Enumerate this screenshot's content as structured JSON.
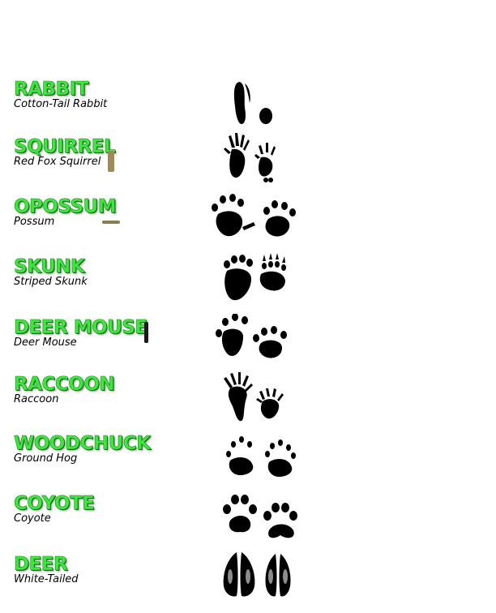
{
  "animals": [
    {
      "name": "RABBIT",
      "subtitle": "Cotton-Tail Rabbit",
      "track_icon": "rabbit-tracks-icon"
    },
    {
      "name": "SQUIRREL",
      "subtitle": "Red Fox Squirrel",
      "track_icon": "squirrel-tracks-icon"
    },
    {
      "name": "OPOSSUM",
      "subtitle": "Possum",
      "track_icon": "opossum-tracks-icon"
    },
    {
      "name": "SKUNK",
      "subtitle": "Striped Skunk",
      "track_icon": "skunk-tracks-icon"
    },
    {
      "name": "DEER MOUSE",
      "subtitle": "Deer Mouse",
      "track_icon": "deer-mouse-tracks-icon"
    },
    {
      "name": "RACCOON",
      "subtitle": "Raccoon",
      "track_icon": "raccoon-tracks-icon"
    },
    {
      "name": "WOODCHUCK",
      "subtitle": "Ground Hog",
      "track_icon": "woodchuck-tracks-icon"
    },
    {
      "name": "COYOTE",
      "subtitle": "Coyote",
      "track_icon": "coyote-tracks-icon"
    },
    {
      "name": "DEER",
      "subtitle": "White-Tailed",
      "track_icon": "deer-tracks-icon"
    }
  ],
  "colors": {
    "title_green": "#3fe63f",
    "title_outline": "#1a8a1a",
    "track_ink": "#000000"
  }
}
